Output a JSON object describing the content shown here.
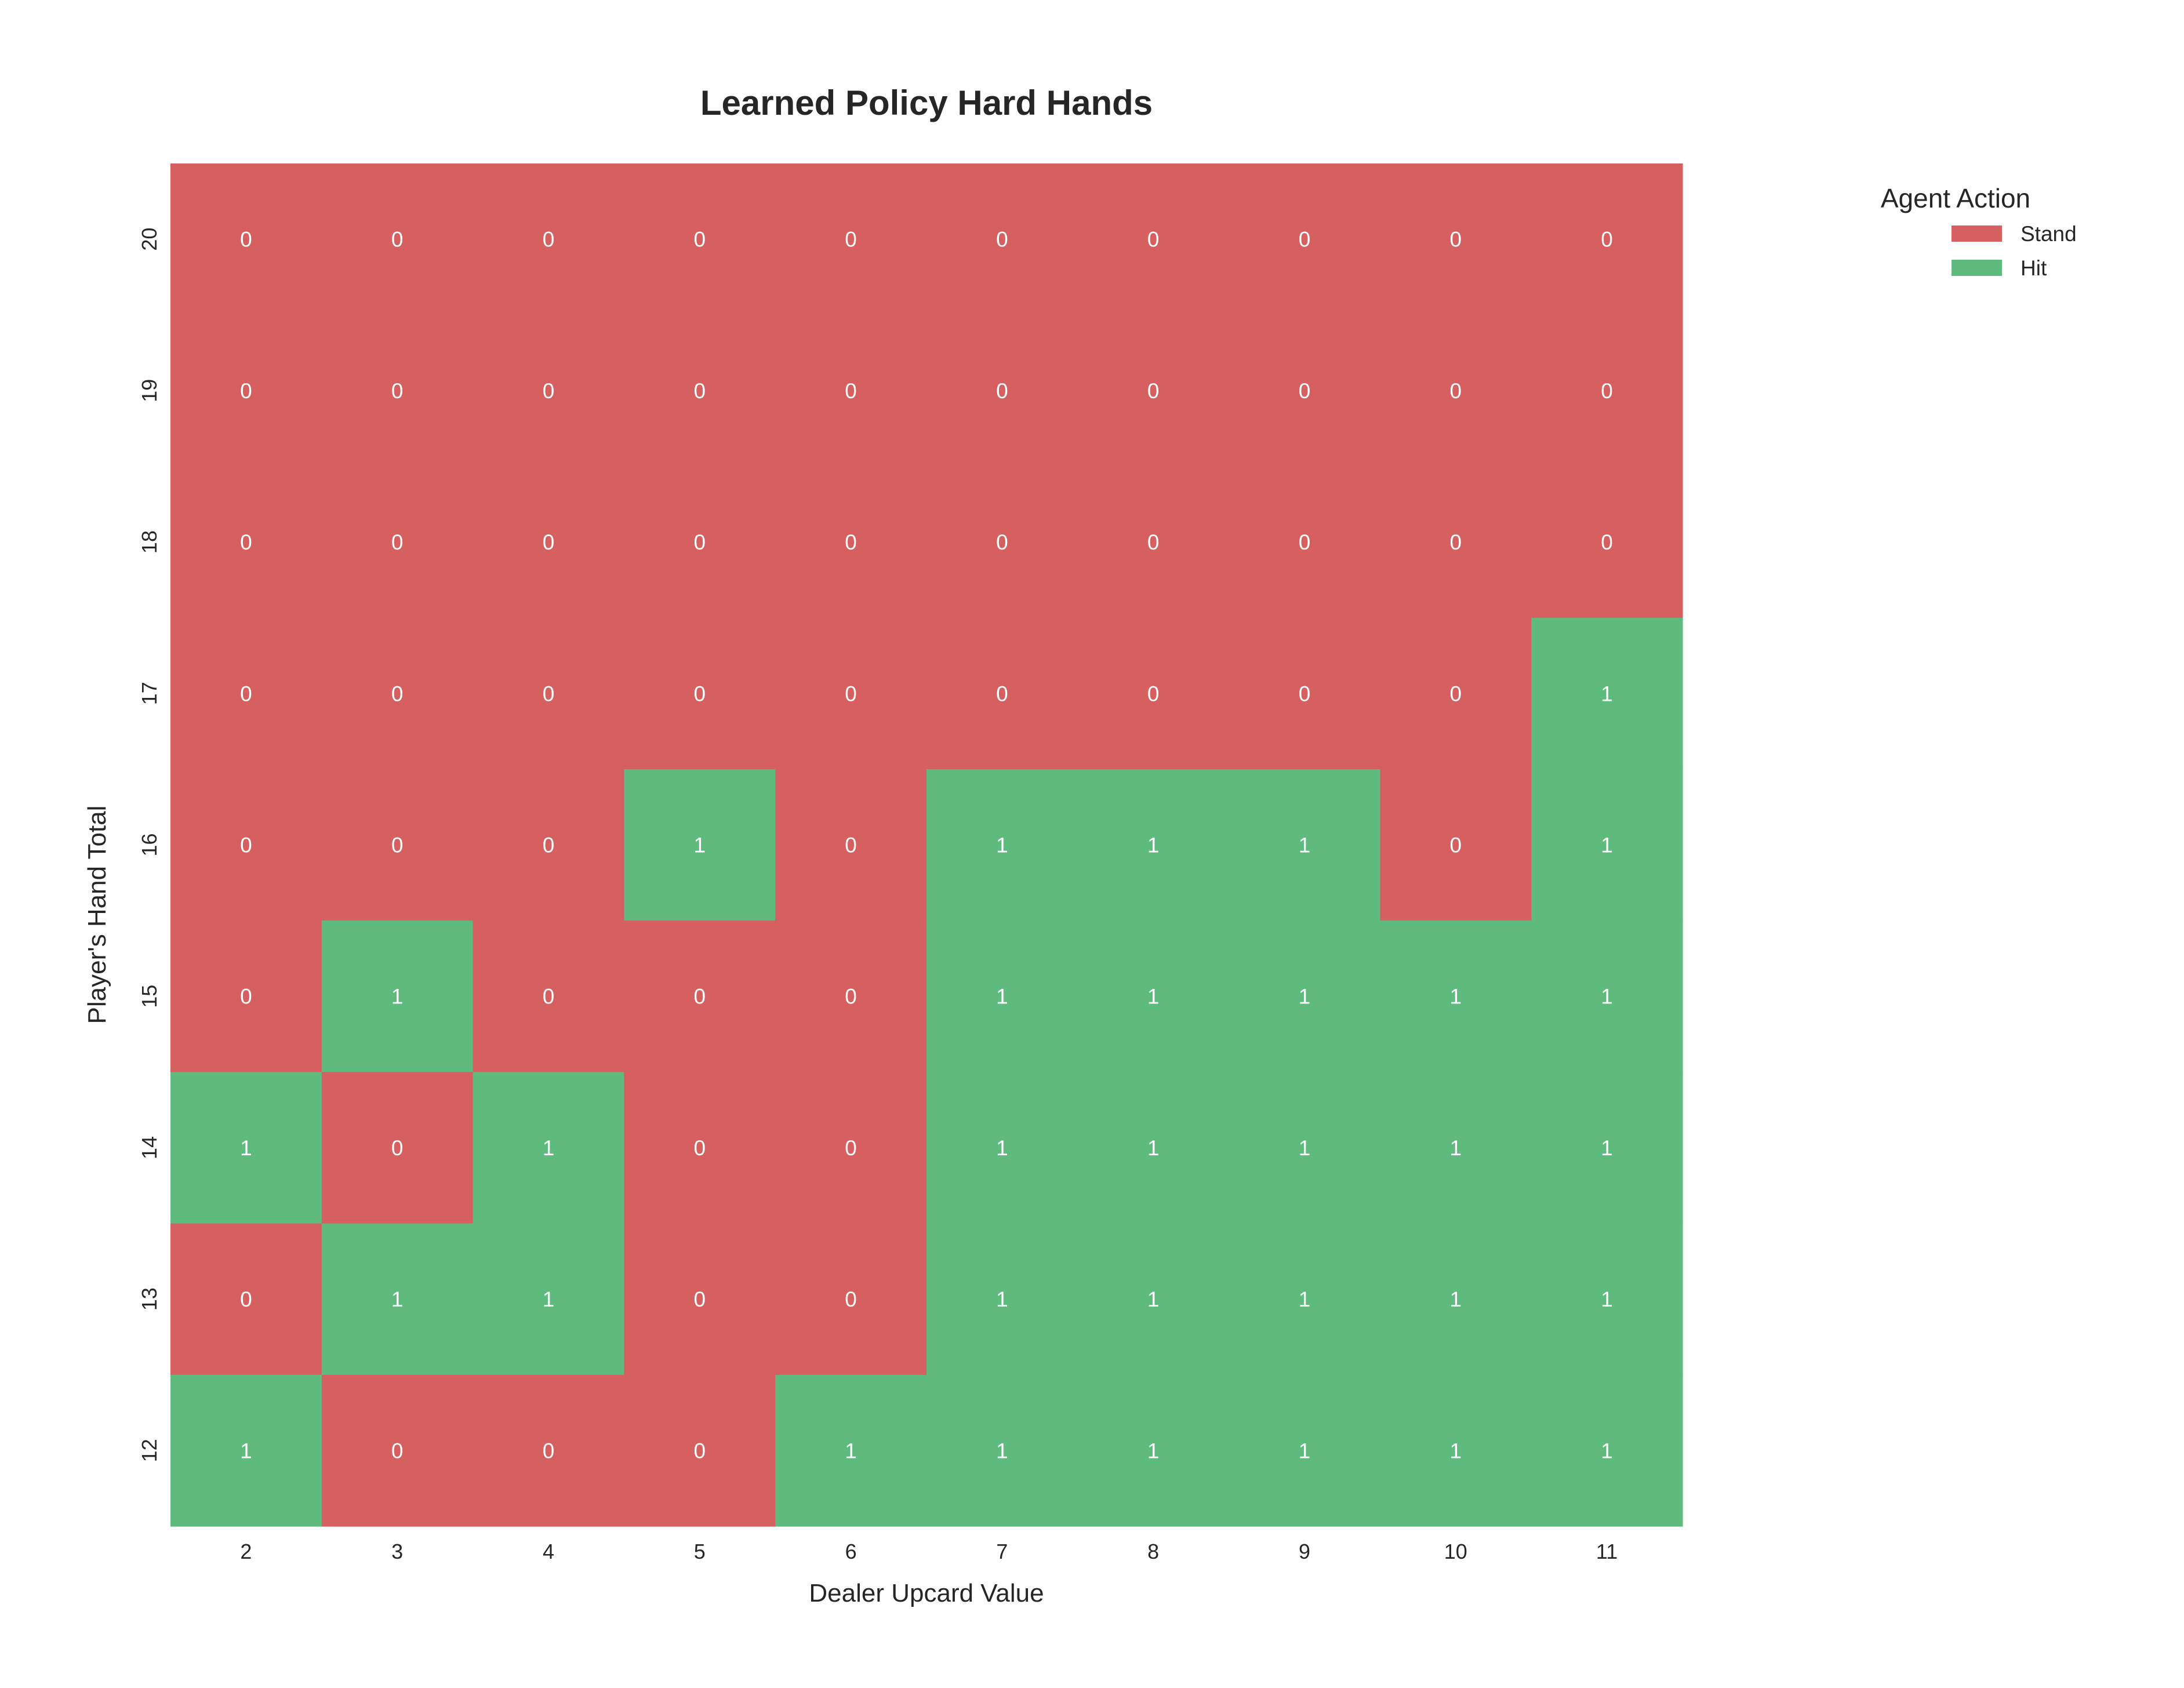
{
  "chart_data": {
    "type": "heatmap",
    "title": "Learned Policy Hard Hands",
    "xlabel": "Dealer Upcard Value",
    "ylabel": "Player's Hand Total",
    "x": [
      "2",
      "3",
      "4",
      "5",
      "6",
      "7",
      "8",
      "9",
      "10",
      "11"
    ],
    "y": [
      "20",
      "19",
      "18",
      "17",
      "16",
      "15",
      "14",
      "13",
      "12"
    ],
    "values": [
      [
        0,
        0,
        0,
        0,
        0,
        0,
        0,
        0,
        0,
        0
      ],
      [
        0,
        0,
        0,
        0,
        0,
        0,
        0,
        0,
        0,
        0
      ],
      [
        0,
        0,
        0,
        0,
        0,
        0,
        0,
        0,
        0,
        0
      ],
      [
        0,
        0,
        0,
        0,
        0,
        0,
        0,
        0,
        0,
        1
      ],
      [
        0,
        0,
        0,
        1,
        0,
        1,
        1,
        1,
        0,
        1
      ],
      [
        0,
        1,
        0,
        0,
        0,
        1,
        1,
        1,
        1,
        1
      ],
      [
        1,
        0,
        1,
        0,
        0,
        1,
        1,
        1,
        1,
        1
      ],
      [
        0,
        1,
        1,
        0,
        0,
        1,
        1,
        1,
        1,
        1
      ],
      [
        1,
        0,
        0,
        0,
        1,
        1,
        1,
        1,
        1,
        1
      ]
    ],
    "legend": {
      "title": "Agent Action",
      "placement": "top-right",
      "entries": [
        {
          "label": "Stand",
          "value": 0,
          "color": "#d65f5f"
        },
        {
          "label": "Hit",
          "value": 1,
          "color": "#5fba7d"
        }
      ]
    },
    "grid": false
  }
}
